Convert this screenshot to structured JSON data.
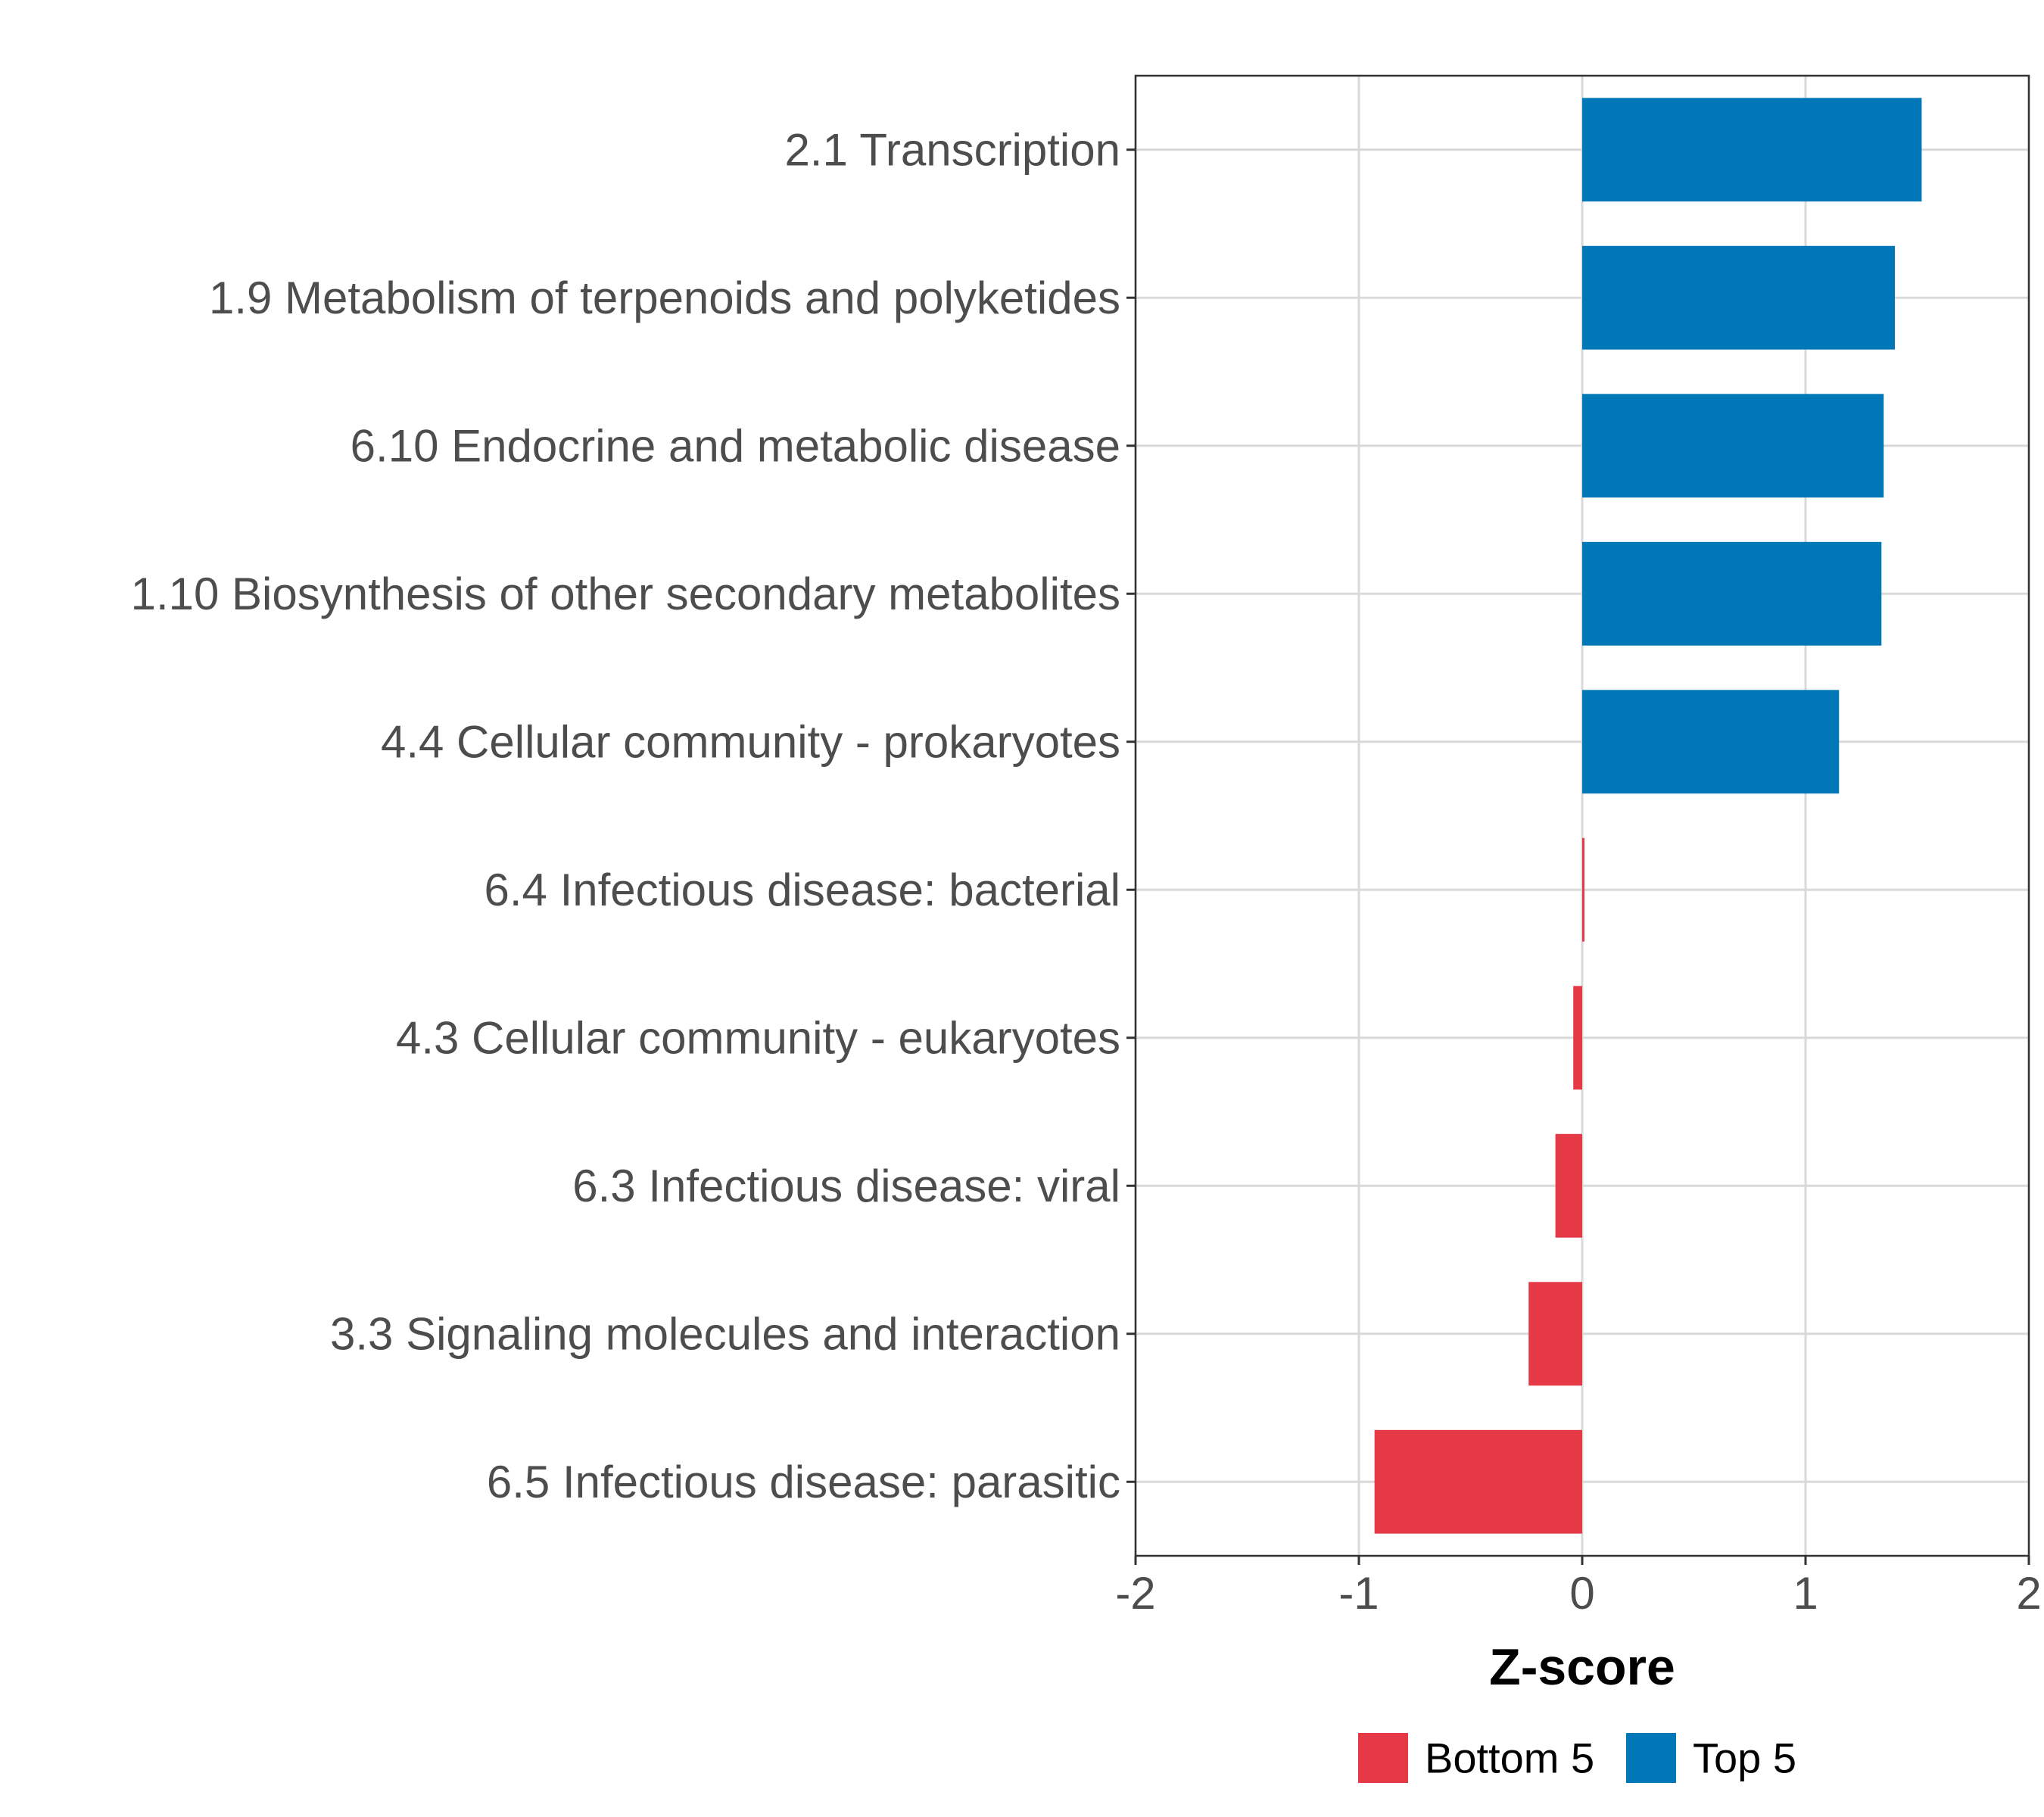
{
  "chart_data": {
    "type": "bar",
    "orientation": "horizontal",
    "title": "",
    "xlabel": "Z-score",
    "ylabel": "",
    "xlim": [
      -2,
      2
    ],
    "xticks": [
      "-2",
      "-1",
      "0",
      "1",
      "2"
    ],
    "grid": true,
    "legend_position": "bottom",
    "categories": [
      "2.1 Transcription",
      "1.9 Metabolism of terpenoids and polyketides",
      "6.10 Endocrine and metabolic disease",
      "1.10 Biosynthesis of other secondary metabolites",
      "4.4 Cellular community - prokaryotes",
      "6.4 Infectious disease: bacterial",
      "4.3 Cellular community - eukaryotes",
      "6.3 Infectious disease: viral",
      "3.3 Signaling molecules and interaction",
      "6.5 Infectious disease: parasitic"
    ],
    "values": [
      1.52,
      1.4,
      1.35,
      1.34,
      1.15,
      0.01,
      -0.04,
      -0.12,
      -0.24,
      -0.93
    ],
    "groups": [
      "Top 5",
      "Top 5",
      "Top 5",
      "Top 5",
      "Top 5",
      "Bottom 5",
      "Bottom 5",
      "Bottom 5",
      "Bottom 5",
      "Bottom 5"
    ],
    "legend": [
      {
        "name": "Bottom 5",
        "color": "#e63946"
      },
      {
        "name": "Top 5",
        "color": "#0077b6"
      }
    ]
  }
}
